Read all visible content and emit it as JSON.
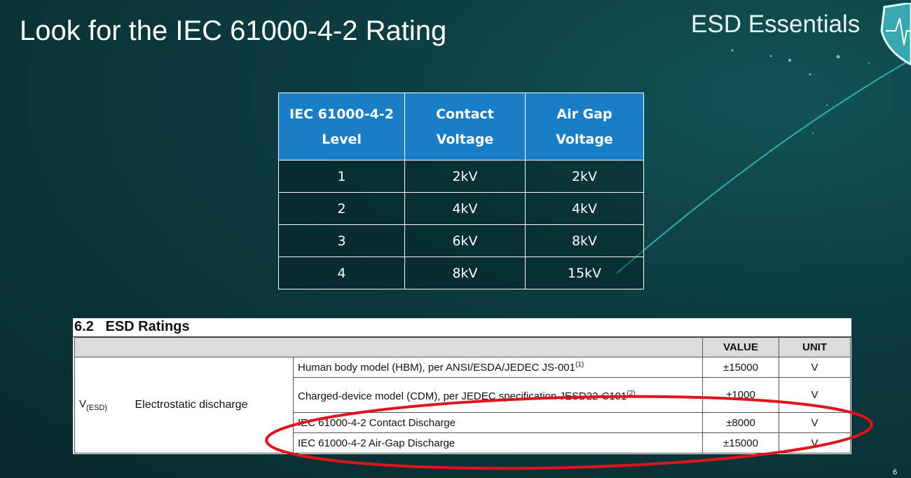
{
  "slide": {
    "title": "Look for the IEC 61000-4-2 Rating",
    "brand": "ESD Essentials",
    "page_number": "6"
  },
  "iec_table": {
    "headers": [
      [
        "IEC 61000-4-2",
        "Level"
      ],
      [
        "Contact",
        "Voltage"
      ],
      [
        "Air Gap",
        "Voltage"
      ]
    ],
    "rows": [
      [
        "1",
        "2kV",
        "2kV"
      ],
      [
        "2",
        "4kV",
        "4kV"
      ],
      [
        "3",
        "6kV",
        "8kV"
      ],
      [
        "4",
        "8kV",
        "15kV"
      ]
    ],
    "header_color": "#1a7ec6"
  },
  "esd_ratings": {
    "section": "6.2",
    "heading": "ESD Ratings",
    "col_value": "VALUE",
    "col_unit": "UNIT",
    "symbol": "V",
    "symbol_sub": "(ESD)",
    "parameter": "Electrostatic discharge",
    "rows": [
      {
        "desc": "Human body model (HBM), per ANSI/ESDA/JEDEC JS-001",
        "note": "(1)",
        "value": "±15000",
        "unit": "V"
      },
      {
        "desc": "Charged-device model (CDM), per JEDEC specification JESD22-C101",
        "note": "(2)",
        "value": "±1000",
        "unit": "V"
      },
      {
        "desc": "IEC 61000-4-2 Contact Discharge",
        "note": "",
        "value": "±8000",
        "unit": "V"
      },
      {
        "desc": "IEC 61000-4-2 Air-Gap Discharge",
        "note": "",
        "value": "±15000",
        "unit": "V"
      }
    ],
    "highlight_color": "#e0141c"
  }
}
